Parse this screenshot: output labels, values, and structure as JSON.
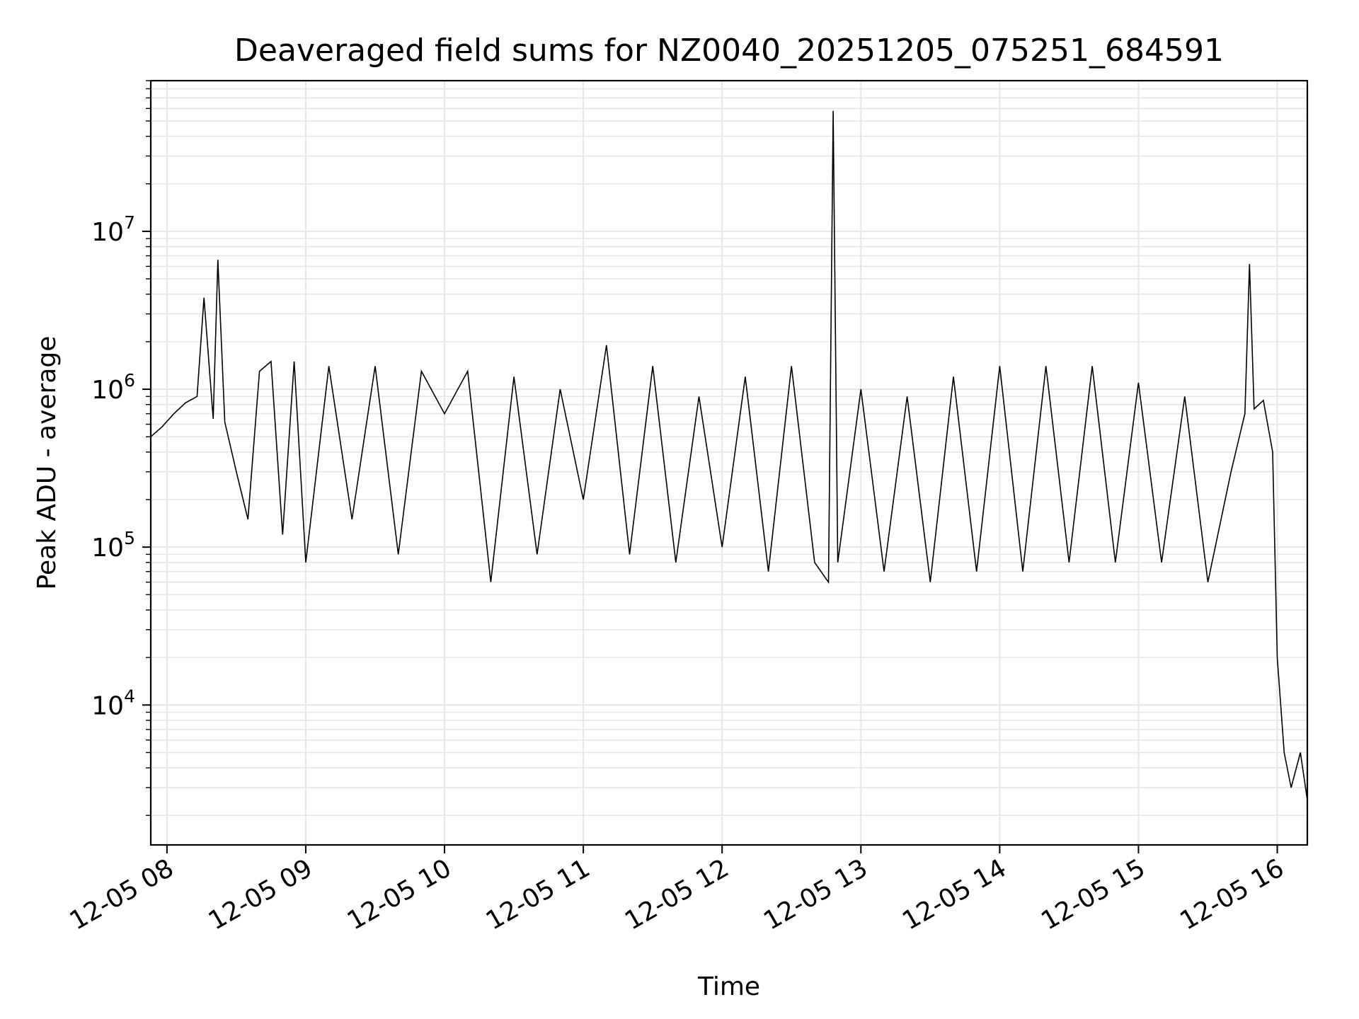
{
  "chart_data": {
    "type": "line",
    "title": "Deaveraged field sums for NZ0040_20251205_075251_684591",
    "xlabel": "Time",
    "ylabel": "Peak ADU - average",
    "y_scale": "log",
    "grid": true,
    "legend": "none",
    "x_range": [
      "2025-12-05 07:53",
      "2025-12-05 16:13"
    ],
    "ylim": [
      1300,
      90000000
    ],
    "x_ticks": [
      {
        "time": "2025-12-05 08:00",
        "label": "12-05 08"
      },
      {
        "time": "2025-12-05 09:00",
        "label": "12-05 09"
      },
      {
        "time": "2025-12-05 10:00",
        "label": "12-05 10"
      },
      {
        "time": "2025-12-05 11:00",
        "label": "12-05 11"
      },
      {
        "time": "2025-12-05 12:00",
        "label": "12-05 12"
      },
      {
        "time": "2025-12-05 13:00",
        "label": "12-05 13"
      },
      {
        "time": "2025-12-05 14:00",
        "label": "12-05 14"
      },
      {
        "time": "2025-12-05 15:00",
        "label": "12-05 15"
      },
      {
        "time": "2025-12-05 16:00",
        "label": "12-05 16"
      }
    ],
    "y_ticks": [
      {
        "value": 10000,
        "base": "10",
        "exp": "4"
      },
      {
        "value": 100000,
        "base": "10",
        "exp": "5"
      },
      {
        "value": 1000000,
        "base": "10",
        "exp": "6"
      },
      {
        "value": 10000000,
        "base": "10",
        "exp": "7"
      }
    ],
    "line_color": "#000000",
    "grid_color": "#e6e6e6",
    "series": [
      {
        "x": [
          "2025-12-05 07:53",
          "2025-12-05 07:58",
          "2025-12-05 08:03",
          "2025-12-05 08:08",
          "2025-12-05 08:13",
          "2025-12-05 08:16",
          "2025-12-05 08:20",
          "2025-12-05 08:22",
          "2025-12-05 08:25",
          "2025-12-05 08:30",
          "2025-12-05 08:35",
          "2025-12-05 08:40",
          "2025-12-05 08:45",
          "2025-12-05 08:50",
          "2025-12-05 08:55",
          "2025-12-05 09:00",
          "2025-12-05 09:10",
          "2025-12-05 09:20",
          "2025-12-05 09:30",
          "2025-12-05 09:40",
          "2025-12-05 09:50",
          "2025-12-05 10:00",
          "2025-12-05 10:10",
          "2025-12-05 10:20",
          "2025-12-05 10:30",
          "2025-12-05 10:40",
          "2025-12-05 10:50",
          "2025-12-05 11:00",
          "2025-12-05 11:10",
          "2025-12-05 11:20",
          "2025-12-05 11:30",
          "2025-12-05 11:40",
          "2025-12-05 11:50",
          "2025-12-05 12:00",
          "2025-12-05 12:10",
          "2025-12-05 12:20",
          "2025-12-05 12:30",
          "2025-12-05 12:40",
          "2025-12-05 12:46",
          "2025-12-05 12:48",
          "2025-12-05 12:50",
          "2025-12-05 13:00",
          "2025-12-05 13:10",
          "2025-12-05 13:20",
          "2025-12-05 13:30",
          "2025-12-05 13:40",
          "2025-12-05 13:50",
          "2025-12-05 14:00",
          "2025-12-05 14:10",
          "2025-12-05 14:20",
          "2025-12-05 14:30",
          "2025-12-05 14:40",
          "2025-12-05 14:50",
          "2025-12-05 15:00",
          "2025-12-05 15:10",
          "2025-12-05 15:20",
          "2025-12-05 15:30",
          "2025-12-05 15:40",
          "2025-12-05 15:46",
          "2025-12-05 15:48",
          "2025-12-05 15:50",
          "2025-12-05 15:54",
          "2025-12-05 15:58",
          "2025-12-05 16:00",
          "2025-12-05 16:03",
          "2025-12-05 16:06",
          "2025-12-05 16:10",
          "2025-12-05 16:13"
        ],
        "y": [
          500000,
          580000,
          700000,
          820000,
          900000,
          3800000,
          650000,
          6600000,
          620000,
          300000,
          150000,
          1300000,
          1500000,
          120000,
          1500000,
          80000,
          1400000,
          150000,
          1400000,
          90000,
          1300000,
          700000,
          1300000,
          60000,
          1200000,
          90000,
          1000000,
          200000,
          1900000,
          90000,
          1400000,
          80000,
          900000,
          100000,
          1200000,
          70000,
          1400000,
          80000,
          60000,
          58000000,
          80000,
          1000000,
          70000,
          900000,
          60000,
          1200000,
          70000,
          1400000,
          70000,
          1400000,
          80000,
          1400000,
          80000,
          1100000,
          80000,
          900000,
          60000,
          300000,
          700000,
          6200000,
          750000,
          850000,
          400000,
          20000,
          5000,
          3000,
          5000,
          2500
        ]
      }
    ]
  }
}
